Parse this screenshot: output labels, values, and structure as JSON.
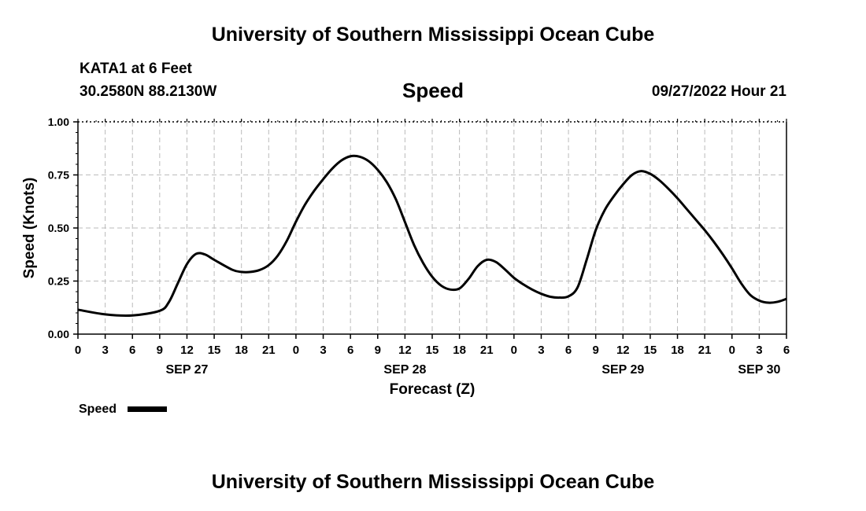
{
  "header": {
    "title": "University of Southern Mississippi Ocean Cube",
    "station": "KATA1 at 6 Feet",
    "coords": "30.2580N  88.2130W",
    "chart_title": "Speed",
    "datetime": "09/27/2022 Hour 21"
  },
  "footer": {
    "title": "University of Southern Mississippi Ocean Cube"
  },
  "legend": {
    "label": "Speed"
  },
  "colors": {
    "line": "#000000",
    "grid": "#bbbbbb",
    "axis": "#000000"
  },
  "chart_data": {
    "type": "line",
    "title": "Speed",
    "xlabel": "Forecast (Z)",
    "ylabel": "Speed (Knots)",
    "ylim": [
      0,
      1
    ],
    "yticks": [
      "0.00",
      "0.25",
      "0.50",
      "0.75",
      "1.00"
    ],
    "xlim": [
      0,
      78
    ],
    "xticks": [
      "0",
      "3",
      "6",
      "9",
      "12",
      "15",
      "18",
      "21",
      "0",
      "3",
      "6",
      "9",
      "12",
      "15",
      "18",
      "21",
      "0",
      "3",
      "6",
      "9",
      "12",
      "15",
      "18",
      "21",
      "0",
      "3",
      "6"
    ],
    "date_labels": [
      {
        "label": "SEP 27",
        "hour": 12
      },
      {
        "label": "SEP 28",
        "hour": 36
      },
      {
        "label": "SEP 29",
        "hour": 60
      },
      {
        "label": "SEP 30",
        "hour": 75
      }
    ],
    "grid": true,
    "legend_position": "bottom-left",
    "series": [
      {
        "name": "Speed",
        "x": [
          0,
          3,
          6,
          9,
          10,
          11,
          12,
          13,
          14,
          15,
          17,
          18,
          19,
          20,
          21,
          22,
          23,
          24,
          25,
          26,
          27,
          28,
          29,
          30,
          31,
          32,
          33,
          34,
          35,
          36,
          37,
          38,
          39,
          40,
          41,
          42,
          43,
          44,
          45,
          46,
          47,
          48,
          49,
          50,
          51,
          52,
          53,
          54,
          55,
          56,
          57,
          58,
          59,
          60,
          61,
          62,
          63,
          64,
          65,
          66,
          67,
          68,
          69,
          70,
          71,
          72,
          73,
          74,
          75,
          76,
          77,
          78
        ],
        "values": [
          0.115,
          0.093,
          0.088,
          0.11,
          0.15,
          0.24,
          0.33,
          0.378,
          0.375,
          0.35,
          0.303,
          0.293,
          0.293,
          0.302,
          0.325,
          0.37,
          0.44,
          0.53,
          0.61,
          0.675,
          0.73,
          0.78,
          0.818,
          0.838,
          0.836,
          0.815,
          0.774,
          0.716,
          0.635,
          0.528,
          0.42,
          0.335,
          0.27,
          0.228,
          0.21,
          0.215,
          0.26,
          0.32,
          0.35,
          0.34,
          0.305,
          0.265,
          0.235,
          0.21,
          0.19,
          0.176,
          0.172,
          0.178,
          0.22,
          0.35,
          0.49,
          0.585,
          0.65,
          0.705,
          0.75,
          0.768,
          0.755,
          0.725,
          0.685,
          0.64,
          0.59,
          0.54,
          0.49,
          0.435,
          0.375,
          0.31,
          0.24,
          0.185,
          0.158,
          0.148,
          0.152,
          0.166
        ]
      }
    ]
  }
}
